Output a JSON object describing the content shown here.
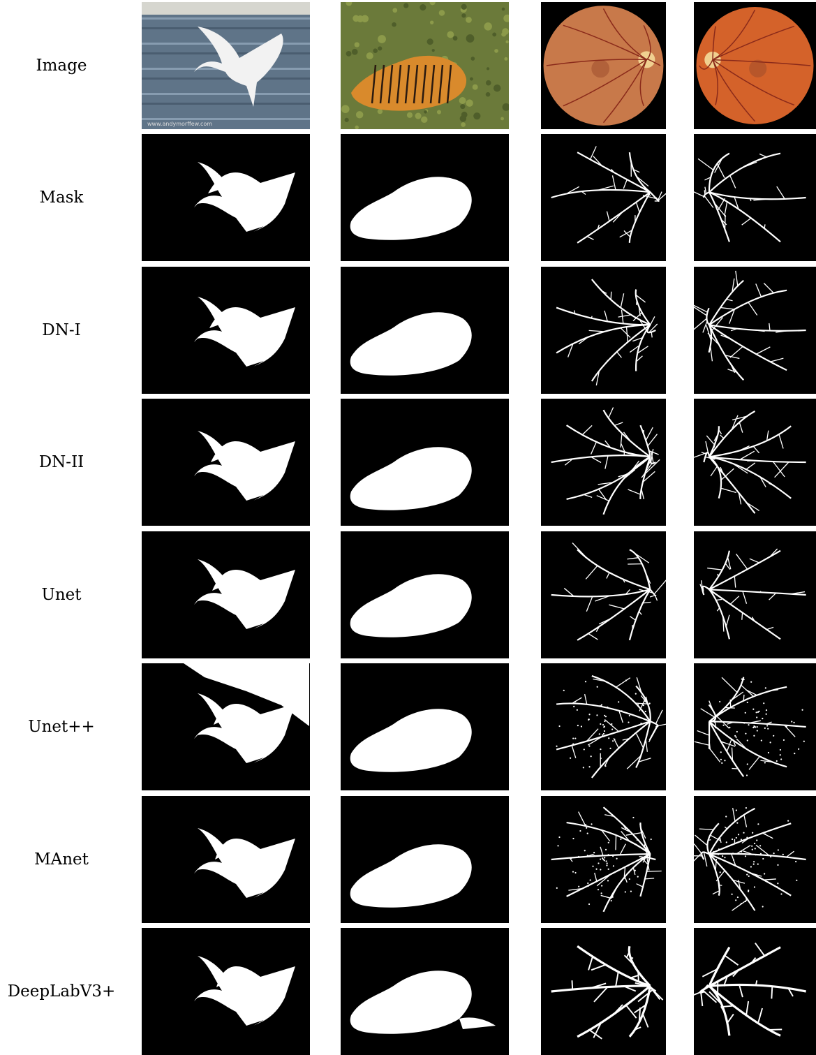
{
  "figure": {
    "rows": [
      {
        "label": "Image",
        "kind": "photo"
      },
      {
        "label": "Mask",
        "kind": "mask",
        "variant": 0
      },
      {
        "label": "DN-I",
        "kind": "mask",
        "variant": 1
      },
      {
        "label": "DN-II",
        "kind": "mask",
        "variant": 2
      },
      {
        "label": "Unet",
        "kind": "mask",
        "variant": 3
      },
      {
        "label": "Unet++",
        "kind": "mask",
        "variant": 4
      },
      {
        "label": "MAnet",
        "kind": "mask",
        "variant": 5
      },
      {
        "label": "DeepLabV3+",
        "kind": "mask",
        "variant": 6
      }
    ],
    "columns": [
      {
        "subject": "egret",
        "photo_colors": {
          "bg": "#5f7488",
          "accent": "#f2f2f2"
        }
      },
      {
        "subject": "tiger",
        "photo_colors": {
          "bg": "#6b7a3a",
          "accent": "#d98a2c"
        }
      },
      {
        "subject": "retina",
        "photo_colors": {
          "bg": "#000000",
          "accent": "#c8794a"
        }
      },
      {
        "subject": "retina",
        "photo_colors": {
          "bg": "#000000",
          "accent": "#d4622a"
        }
      }
    ],
    "photo_watermark": "www.andymorffew.com",
    "mask_colors": {
      "background": "#000000",
      "foreground": "#ffffff"
    }
  }
}
